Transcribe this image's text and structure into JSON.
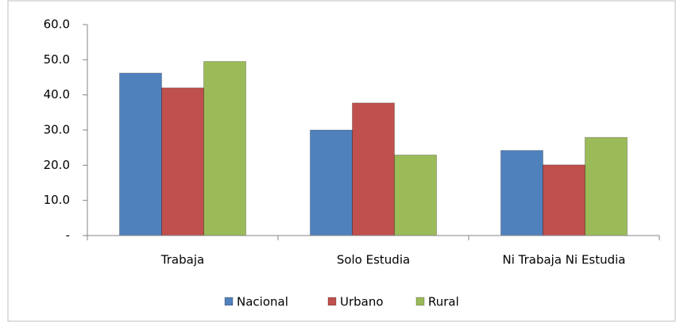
{
  "chart_data": {
    "type": "bar",
    "categories": [
      "Trabaja",
      "Solo Estudia",
      "Ni Trabaja Ni Estudia"
    ],
    "series": [
      {
        "name": "Nacional",
        "color": "#4f81bd",
        "values": [
          46.2,
          30.0,
          24.2
        ]
      },
      {
        "name": "Urbano",
        "color": "#c0504d",
        "values": [
          42.0,
          37.7,
          20.1
        ]
      },
      {
        "name": "Rural",
        "color": "#9bbb59",
        "values": [
          49.5,
          22.9,
          27.9
        ]
      }
    ],
    "ylim": [
      0,
      60
    ],
    "yticks": [
      {
        "value": 0,
        "label": "-"
      },
      {
        "value": 10,
        "label": "10.0"
      },
      {
        "value": 20,
        "label": "20.0"
      },
      {
        "value": 30,
        "label": "30.0"
      },
      {
        "value": 40,
        "label": "40.0"
      },
      {
        "value": 50,
        "label": "50.0"
      },
      {
        "value": 60,
        "label": "60.0"
      }
    ],
    "legend": "bottom"
  }
}
